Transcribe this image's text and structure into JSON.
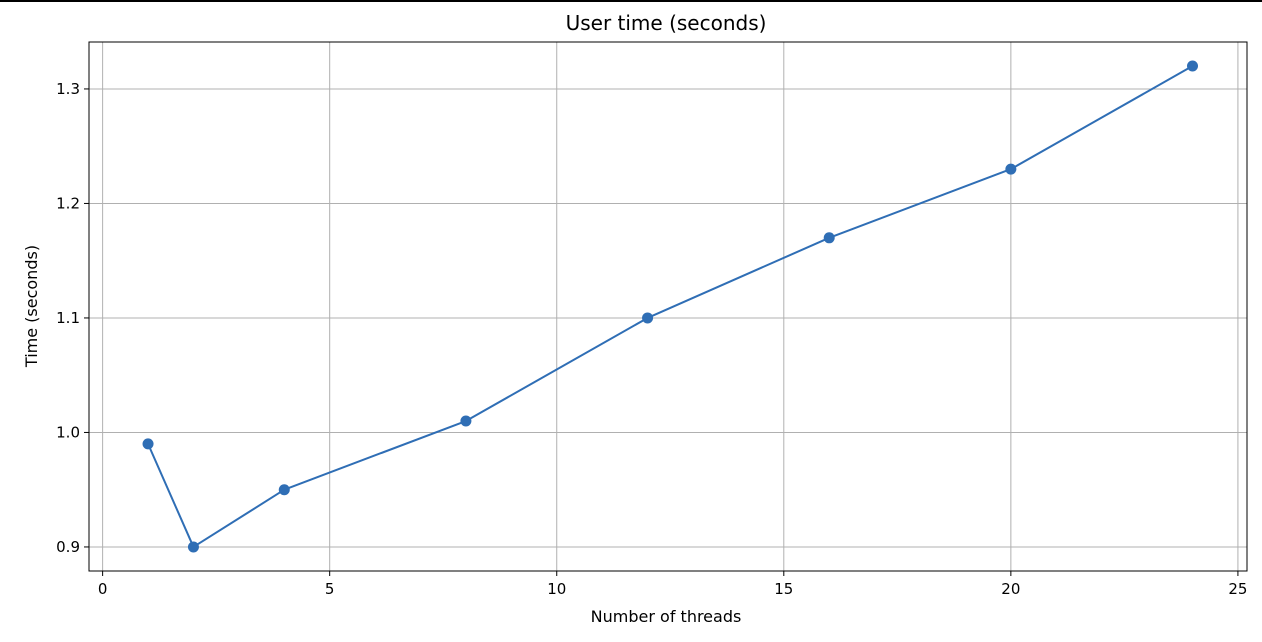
{
  "chart_data": {
    "type": "line",
    "title": "User time (seconds)",
    "xlabel": "Number of threads",
    "ylabel": "Time (seconds)",
    "xlim": [
      -0.3,
      25.2
    ],
    "ylim": [
      0.879,
      1.341
    ],
    "xticks": [
      0,
      5,
      10,
      15,
      20,
      25
    ],
    "yticks": [
      0.9,
      1.0,
      1.1,
      1.2,
      1.3
    ],
    "xtick_labels": [
      "0",
      "5",
      "10",
      "15",
      "20",
      "25"
    ],
    "ytick_labels": [
      "0.9",
      "1.0",
      "1.1",
      "1.2",
      "1.3"
    ],
    "grid": true,
    "marker": "circle",
    "series": [
      {
        "color": "#2f6eb5",
        "x": [
          1,
          2,
          4,
          8,
          12,
          16,
          20,
          24
        ],
        "y": [
          0.99,
          0.9,
          0.95,
          1.01,
          1.1,
          1.17,
          1.23,
          1.32
        ]
      }
    ]
  }
}
